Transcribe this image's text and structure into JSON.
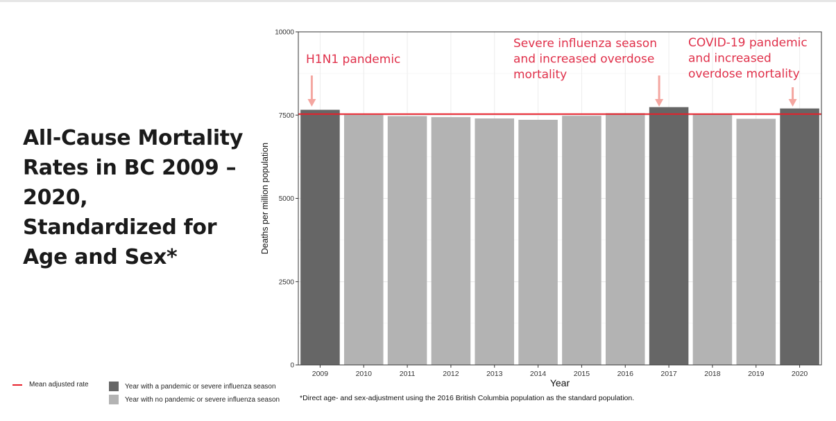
{
  "title": "All-Cause Mortality Rates in BC 2009 – 2020, Standardized for Age and Sex*",
  "legend": {
    "mean_line": "Mean adjusted rate",
    "pandemic": "Year with a pandemic or severe influenza season",
    "no_pandemic": "Year with no pandemic or severe influenza season"
  },
  "footnote": "*Direct age- and sex-adjustment using the 2016 British Columbia population as the standard population.",
  "colors": {
    "pandemic_bar": "#666666",
    "normal_bar": "#b3b3b3",
    "mean_line": "#e8202a",
    "annotation_text": "#e0304a",
    "annotation_arrow": "#f4a6a0"
  },
  "chart_data": {
    "type": "bar",
    "xlabel": "Year",
    "ylabel": "Deaths per million population",
    "ylim": [
      0,
      10000
    ],
    "yticks": [
      0,
      2500,
      5000,
      7500,
      10000
    ],
    "grid": true,
    "categories": [
      "2009",
      "2010",
      "2011",
      "2012",
      "2013",
      "2014",
      "2015",
      "2016",
      "2017",
      "2018",
      "2019",
      "2020"
    ],
    "values": [
      7660,
      7510,
      7470,
      7440,
      7400,
      7360,
      7480,
      7560,
      7740,
      7540,
      7390,
      7700
    ],
    "pandemic": [
      true,
      false,
      false,
      false,
      false,
      false,
      false,
      false,
      true,
      false,
      false,
      true
    ],
    "mean": 7530,
    "annotations": [
      {
        "year": "2009",
        "lines": [
          "H1N1 pandemic"
        ]
      },
      {
        "year": "2017",
        "lines": [
          "Severe influenza season",
          "and increased overdose",
          "mortality"
        ]
      },
      {
        "year": "2020",
        "lines": [
          "COVID-19 pandemic",
          "and increased",
          "overdose mortality"
        ]
      }
    ]
  }
}
